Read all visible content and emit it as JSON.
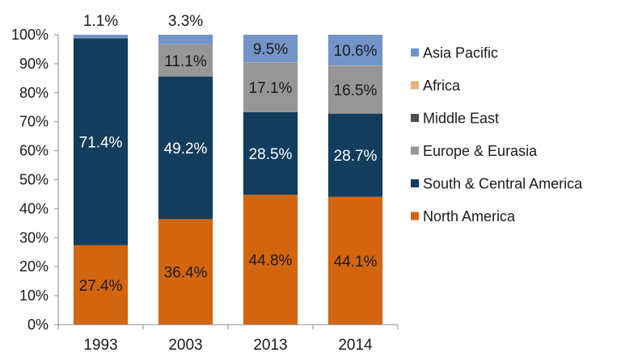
{
  "chart_data": {
    "type": "bar",
    "stacked": true,
    "categories": [
      "1993",
      "2003",
      "2013",
      "2014"
    ],
    "ylim": [
      0,
      100
    ],
    "yticks": [
      "0%",
      "10%",
      "20%",
      "30%",
      "40%",
      "50%",
      "60%",
      "70%",
      "80%",
      "90%",
      "100%"
    ],
    "legend_position": "right",
    "series": [
      {
        "name": "North America",
        "color": "#d4650f",
        "values": [
          27.4,
          36.4,
          44.8,
          44.1
        ],
        "labels": [
          "27.4%",
          "36.4%",
          "44.8%",
          "44.1%"
        ]
      },
      {
        "name": "South & Central America",
        "color": "#123d5c",
        "values": [
          71.4,
          49.2,
          28.5,
          28.7
        ],
        "labels": [
          "71.4%",
          "49.2%",
          "28.5%",
          "28.7%"
        ]
      },
      {
        "name": "Europe & Eurasia",
        "color": "#969696",
        "values": [
          0.1,
          11.1,
          17.1,
          16.5
        ],
        "labels": [
          "",
          "11.1%",
          "17.1%",
          "16.5%"
        ]
      },
      {
        "name": "Middle East",
        "color": "#4d4d4d",
        "values": [
          0,
          0,
          0,
          0
        ],
        "labels": [
          "",
          "",
          "",
          ""
        ]
      },
      {
        "name": "Africa",
        "color": "#e8b07a",
        "values": [
          0,
          0,
          0.1,
          0.1
        ],
        "labels": [
          "",
          "",
          "",
          ""
        ]
      },
      {
        "name": "Asia Pacific",
        "color": "#7394c9",
        "values": [
          1.1,
          3.3,
          9.5,
          10.6
        ],
        "labels": [
          "1.1%",
          "3.3%",
          "9.5%",
          "10.6%"
        ]
      }
    ]
  }
}
